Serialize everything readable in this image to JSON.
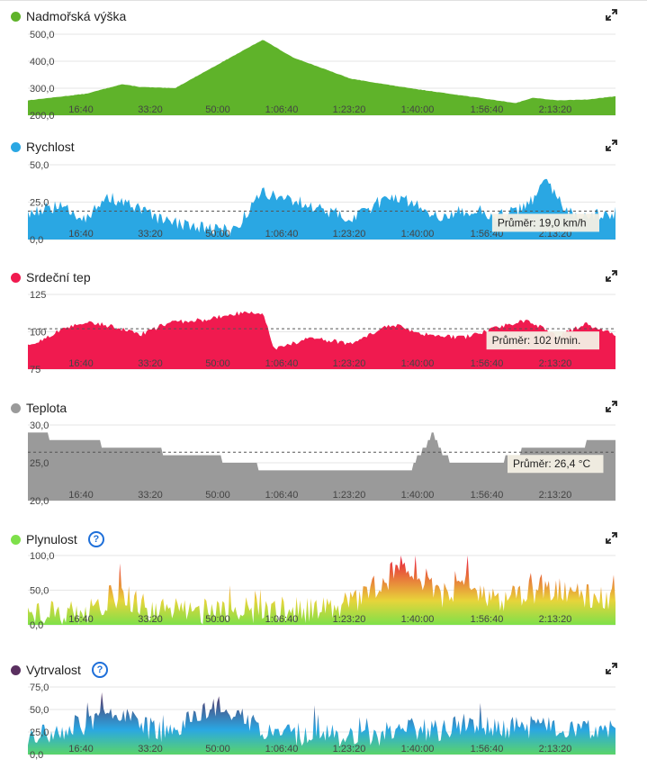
{
  "chart_data": [
    {
      "type": "area",
      "title": "Nadmořská výška",
      "color": "#5fb32a",
      "ylim": [
        200,
        500
      ],
      "yticks": [
        "500,0",
        "400,0",
        "300,0",
        "200,0"
      ],
      "x_ticks": [
        "16:40",
        "33:20",
        "50:00",
        "1:06:40",
        "1:23:20",
        "1:40:00",
        "1:56:40",
        "2:13:20"
      ],
      "x": [
        0,
        0.1,
        0.16,
        0.19,
        0.25,
        0.3,
        0.4,
        0.45,
        0.55,
        0.65,
        0.75,
        0.83,
        0.86,
        0.9,
        0.95,
        1.0
      ],
      "y": [
        255,
        280,
        315,
        305,
        300,
        360,
        480,
        415,
        335,
        300,
        270,
        245,
        265,
        255,
        258,
        270
      ],
      "average_label": ""
    },
    {
      "type": "area",
      "title": "Rychlost",
      "color": "#2aa7e3",
      "ylim": [
        0,
        50
      ],
      "yticks": [
        "50,0",
        "25,0",
        "0,0"
      ],
      "x_ticks": [
        "16:40",
        "33:20",
        "50:00",
        "1:06:40",
        "1:23:20",
        "1:40:00",
        "1:56:40",
        "2:13:20"
      ],
      "x": [
        0,
        0.05,
        0.1,
        0.14,
        0.19,
        0.23,
        0.3,
        0.35,
        0.4,
        0.47,
        0.55,
        0.62,
        0.7,
        0.76,
        0.8,
        0.85,
        0.88,
        0.93,
        1.0
      ],
      "y": [
        18,
        22,
        15,
        28,
        20,
        12,
        8,
        6,
        32,
        24,
        14,
        30,
        16,
        20,
        15,
        22,
        38,
        14,
        18
      ],
      "average": 19.0,
      "average_label": "Průměr: 19,0 km/h"
    },
    {
      "type": "area",
      "title": "Srdeční tep",
      "color": "#f01a4f",
      "ylim": [
        75,
        125
      ],
      "yticks": [
        "125",
        "100",
        "75"
      ],
      "x_ticks": [
        "16:40",
        "33:20",
        "50:00",
        "1:06:40",
        "1:23:20",
        "1:40:00",
        "1:56:40",
        "2:13:20"
      ],
      "x": [
        0,
        0.05,
        0.1,
        0.15,
        0.19,
        0.24,
        0.3,
        0.35,
        0.4,
        0.42,
        0.48,
        0.55,
        0.62,
        0.68,
        0.74,
        0.8,
        0.85,
        0.9,
        0.95,
        1.0
      ],
      "y": [
        90,
        100,
        107,
        103,
        98,
        106,
        108,
        112,
        113,
        88,
        96,
        92,
        105,
        98,
        96,
        103,
        108,
        97,
        105,
        98
      ],
      "average": 102,
      "average_label": "Průměr: 102 t/min."
    },
    {
      "type": "area",
      "title": "Teplota",
      "color": "#9a9a9a",
      "ylim": [
        20,
        30
      ],
      "yticks": [
        "30,0",
        "25,0",
        "20,0"
      ],
      "x_ticks": [
        "16:40",
        "33:20",
        "50:00",
        "1:06:40",
        "1:23:20",
        "1:40:00",
        "1:56:40",
        "2:13:20"
      ],
      "x": [
        0,
        0.07,
        0.18,
        0.28,
        0.38,
        0.4,
        0.45,
        0.5,
        0.58,
        0.65,
        0.69,
        0.7,
        0.72,
        0.8,
        0.85,
        0.9,
        1.0
      ],
      "y": [
        29,
        28,
        27,
        26,
        25,
        24,
        24,
        24,
        24,
        24,
        29,
        27,
        25,
        25,
        27,
        27,
        28
      ],
      "average": 26.4,
      "average_label": "Průměr: 26,4 °C"
    },
    {
      "type": "area",
      "title": "Plynulost",
      "color": "#7ee04a",
      "ylim": [
        0,
        100
      ],
      "yticks": [
        "100,0",
        "50,0",
        "0,0"
      ],
      "x_ticks": [
        "16:40",
        "33:20",
        "50:00",
        "1:06:40",
        "1:23:20",
        "1:40:00",
        "1:56:40",
        "2:13:20"
      ],
      "x": [
        0,
        0.1,
        0.16,
        0.2,
        0.3,
        0.4,
        0.5,
        0.55,
        0.58,
        0.6,
        0.64,
        0.66,
        0.7,
        0.75,
        0.8,
        0.88,
        0.93,
        1.0
      ],
      "y": [
        15,
        20,
        48,
        25,
        20,
        22,
        20,
        30,
        50,
        55,
        95,
        70,
        40,
        60,
        30,
        55,
        45,
        40
      ],
      "average_label": ""
    },
    {
      "type": "area",
      "title": "Vytrvalost",
      "color": "#5a3060",
      "ylim": [
        0,
        75
      ],
      "yticks": [
        "75,0",
        "50,0",
        "25,0",
        "0,0"
      ],
      "x_ticks": [
        "16:40",
        "33:20",
        "50:00",
        "1:06:40",
        "1:23:20",
        "1:40:00",
        "1:56:40",
        "2:13:20"
      ],
      "x": [
        0,
        0.1,
        0.15,
        0.2,
        0.25,
        0.28,
        0.32,
        0.36,
        0.4,
        0.45,
        0.5,
        0.55,
        0.6,
        0.65,
        0.7,
        0.75,
        0.8,
        0.85,
        0.9,
        1.0
      ],
      "y": [
        20,
        35,
        50,
        30,
        22,
        40,
        55,
        45,
        30,
        20,
        25,
        18,
        22,
        30,
        25,
        35,
        28,
        30,
        32,
        25
      ],
      "average_label": ""
    }
  ]
}
